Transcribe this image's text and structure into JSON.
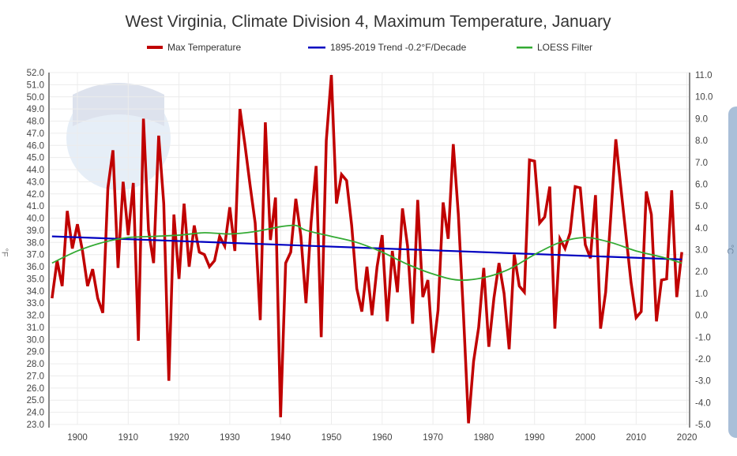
{
  "chart_data": {
    "type": "line",
    "title": "West Virginia, Climate Division 4, Maximum Temperature, January",
    "xlabel": "",
    "ylabel": "°F",
    "y2label": "°C",
    "xlim": [
      1895,
      2020
    ],
    "ylim": [
      23.0,
      52.0
    ],
    "y2lim": [
      -5.0,
      11.0
    ],
    "x_ticks": [
      1900,
      1910,
      1920,
      1930,
      1940,
      1950,
      1960,
      1970,
      1980,
      1990,
      2000,
      2010,
      2020
    ],
    "y_ticks": [
      "52.0",
      "51.0",
      "50.0",
      "49.0",
      "48.0",
      "47.0",
      "46.0",
      "45.0",
      "44.0",
      "43.0",
      "42.0",
      "41.0",
      "40.0",
      "39.0",
      "38.0",
      "37.0",
      "36.0",
      "35.0",
      "34.0",
      "33.0",
      "32.0",
      "31.0",
      "30.0",
      "29.0",
      "28.0",
      "27.0",
      "26.0",
      "25.0",
      "24.0",
      "23.0"
    ],
    "y2_ticks": [
      "11.0",
      "10.0",
      "9.0",
      "8.0",
      "7.0",
      "6.0",
      "5.0",
      "4.0",
      "3.0",
      "2.0",
      "1.0",
      "0.0",
      "-1.0",
      "-2.0",
      "-3.0",
      "-4.0",
      "-5.0"
    ],
    "grid": true,
    "legend_placement": "top",
    "series": [
      {
        "name": "Max Temperature",
        "color": "#c00000",
        "x_start": 1895,
        "values": [
          33.4,
          36.5,
          34.4,
          40.6,
          37.5,
          39.5,
          37.3,
          34.4,
          35.8,
          33.4,
          32.2,
          42.5,
          45.6,
          35.9,
          43.0,
          38.6,
          42.9,
          29.9,
          48.2,
          39.0,
          36.3,
          46.8,
          41.2,
          26.6,
          40.3,
          35.0,
          41.2,
          36.0,
          39.4,
          37.2,
          37.0,
          36.0,
          36.5,
          38.5,
          37.7,
          40.9,
          37.3,
          49.0,
          46.0,
          42.7,
          39.6,
          31.6,
          47.9,
          38.2,
          41.7,
          23.6,
          36.3,
          37.2,
          41.6,
          38.5,
          33.0,
          39.6,
          44.3,
          30.2,
          46.4,
          51.8,
          41.2,
          43.6,
          43.1,
          39.4,
          34.2,
          32.3,
          36.0,
          32.0,
          36.0,
          38.6,
          31.5,
          37.3,
          33.9,
          40.8,
          37.7,
          31.3,
          41.5,
          33.5,
          34.9,
          28.9,
          32.4,
          41.3,
          38.3,
          46.1,
          40.3,
          32.1,
          23.1,
          28.2,
          31.0,
          35.9,
          29.4,
          33.4,
          36.3,
          33.8,
          29.2,
          37.0,
          34.4,
          33.9,
          44.8,
          44.7,
          39.6,
          40.1,
          42.6,
          30.9,
          38.3,
          37.5,
          38.8,
          42.6,
          42.5,
          37.8,
          36.7,
          41.9,
          30.9,
          33.9,
          40.1,
          46.5,
          42.5,
          38.6,
          34.7,
          31.8,
          32.3,
          42.2,
          40.3,
          31.5,
          34.9,
          35.0,
          42.3,
          33.5,
          37.2
        ]
      },
      {
        "name": "1895-2019 Trend -0.2°F/Decade",
        "color": "#0000c0",
        "x": [
          1895,
          2019
        ],
        "values": [
          38.5,
          36.6
        ]
      },
      {
        "name": "LOESS Filter",
        "color": "#33aa33",
        "x": [
          1895,
          1900,
          1905,
          1910,
          1915,
          1920,
          1925,
          1930,
          1935,
          1940,
          1943,
          1945,
          1950,
          1955,
          1960,
          1965,
          1970,
          1975,
          1980,
          1985,
          1990,
          1995,
          2000,
          2005,
          2010,
          2015,
          2019
        ],
        "values": [
          36.3,
          37.3,
          38.0,
          38.4,
          38.5,
          38.6,
          38.8,
          38.7,
          38.9,
          39.3,
          39.4,
          39.0,
          38.5,
          38.0,
          37.2,
          36.2,
          35.4,
          34.9,
          35.1,
          35.8,
          37.0,
          38.0,
          38.4,
          38.0,
          37.3,
          36.8,
          36.3
        ]
      }
    ]
  }
}
